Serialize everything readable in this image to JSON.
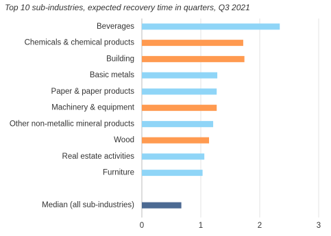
{
  "chart_data": {
    "type": "hbar",
    "title": "Top 10 sub-industries, expected recovery time in quarters, Q3 2021",
    "categories": [
      "Beverages",
      "Chemicals & chemical products",
      "Building",
      "Basic metals",
      "Paper & paper products",
      "Machinery & equipment",
      "Other non-metallic mineral products",
      "Wood",
      "Real estate activities",
      "Furniture",
      null,
      "Median (all sub-industries)"
    ],
    "values": [
      2.34,
      1.72,
      1.74,
      1.28,
      1.27,
      1.27,
      1.21,
      1.14,
      1.06,
      1.03,
      null,
      0.67
    ],
    "colors": [
      "#8fd5f7",
      "#ff9a50",
      "#ff9a50",
      "#8fd5f7",
      "#8fd5f7",
      "#ff9a50",
      "#8fd5f7",
      "#ff9a50",
      "#8fd5f7",
      "#8fd5f7",
      null,
      "#4c6a92"
    ],
    "xlim": [
      0,
      3
    ],
    "xticks": [
      0,
      1,
      2,
      3
    ],
    "grid": true
  }
}
